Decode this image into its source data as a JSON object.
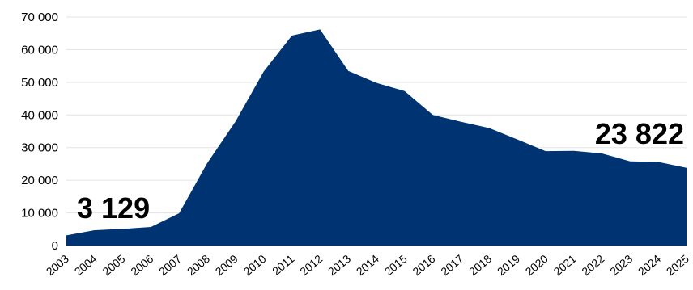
{
  "chart_data": {
    "type": "area",
    "x": [
      "2003",
      "2004",
      "2005",
      "2006",
      "2007",
      "2008",
      "2009",
      "2010",
      "2011",
      "2012",
      "2013",
      "2014",
      "2015",
      "2016",
      "2017",
      "2018",
      "2019",
      "2020",
      "2021",
      "2022",
      "2023",
      "2024",
      "2025"
    ],
    "series": [
      {
        "values": [
          3129,
          4700,
          5100,
          5700,
          9900,
          25300,
          38000,
          53300,
          64300,
          66200,
          53500,
          49800,
          47300,
          40000,
          37900,
          36000,
          32500,
          28900,
          29000,
          28200,
          25800,
          25600,
          23822
        ]
      }
    ],
    "ylim": [
      0,
      70000
    ],
    "yticks": [
      0,
      10000,
      20000,
      30000,
      40000,
      50000,
      60000,
      70000
    ],
    "ytick_labels": [
      "0",
      "10 000",
      "20 000",
      "30 000",
      "40 000",
      "50 000",
      "60 000",
      "70 000"
    ],
    "grid": true,
    "color": "#003371",
    "annotations": [
      {
        "text": "3 129",
        "x_index": 0
      },
      {
        "text": "23 822",
        "x_index": 22
      }
    ]
  }
}
